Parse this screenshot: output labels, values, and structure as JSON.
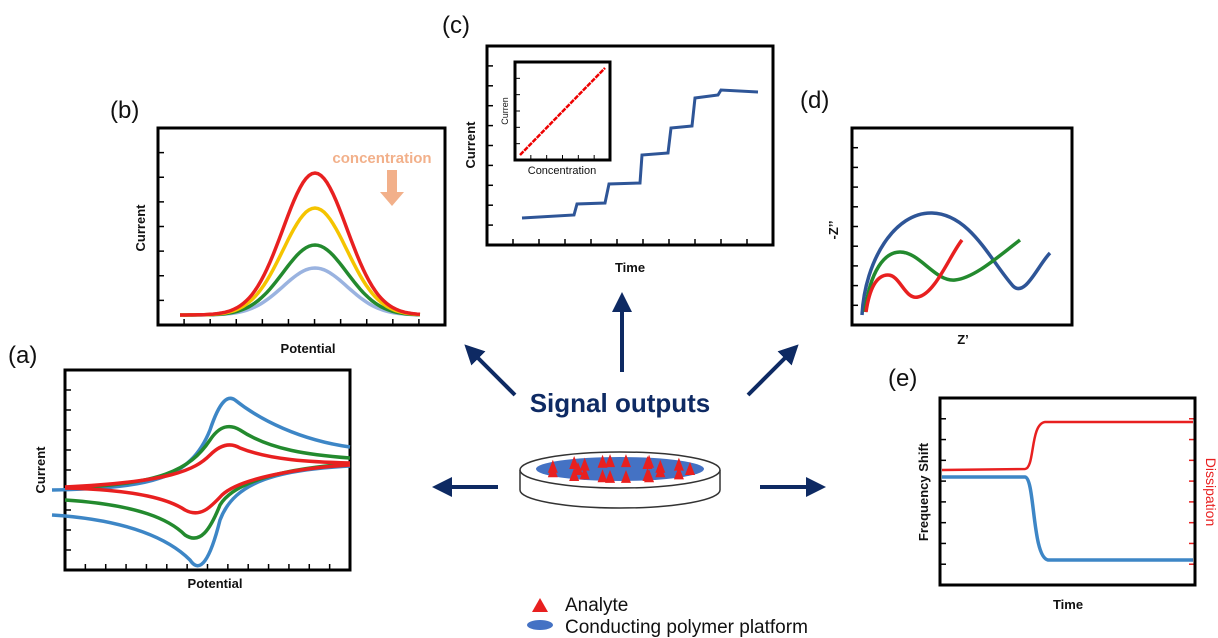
{
  "center": {
    "title": "Signal outputs"
  },
  "legend": {
    "analyte": "Analyte",
    "platform": "Conducting polymer platform"
  },
  "panels": {
    "a": {
      "label": "(a)",
      "y_label": "Current",
      "x_label": "Potential"
    },
    "b": {
      "label": "(b)",
      "y_label": "Current",
      "x_label": "Potential",
      "annotation": "concentration"
    },
    "c": {
      "label": "(c)",
      "y_label": "Current",
      "x_label": "Time",
      "inset_y_label": "Curren",
      "inset_x_label": "Concentration"
    },
    "d": {
      "label": "(d)",
      "y_label": "-Z’’",
      "x_label": "Z’"
    },
    "e": {
      "label": "(e)",
      "y_label": "Frequency Shift",
      "y2_label": "Dissipation",
      "x_label": "Time"
    }
  }
}
